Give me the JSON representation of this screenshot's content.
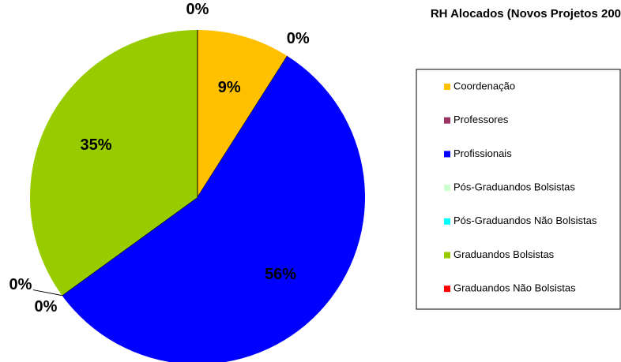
{
  "chart_data": {
    "type": "pie",
    "title": "RH Alocados (Novos Projetos 200",
    "categories": [
      "Coordenação",
      "Professores",
      "Profissionais",
      "Pós-Graduandos Bolsistas",
      "Pós-Graduandos Não Bolsistas",
      "Graduandos Bolsistas",
      "Graduandos Não Bolsistas"
    ],
    "values": [
      9,
      0,
      56,
      0,
      0,
      35,
      0
    ],
    "value_labels": [
      "9%",
      "0%",
      "56%",
      "0%",
      "0%",
      "35%",
      "0%"
    ],
    "colors": [
      "#ffc000",
      "#993366",
      "#0000ff",
      "#ccffcc",
      "#00ffff",
      "#99cc00",
      "#ff0000"
    ],
    "legend": "right"
  }
}
